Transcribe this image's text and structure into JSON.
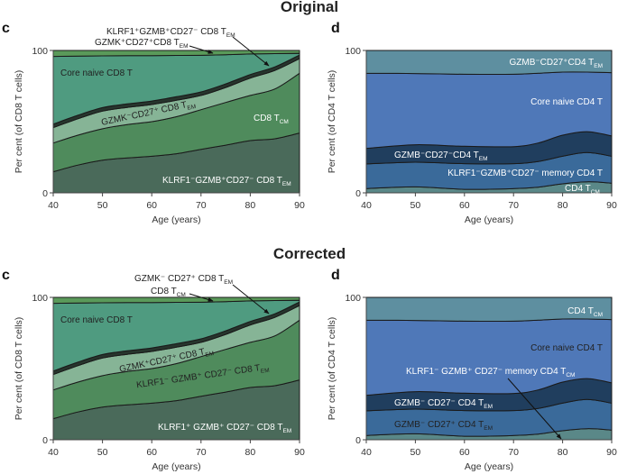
{
  "sections": [
    {
      "title": "Original"
    },
    {
      "title": "Corrected"
    }
  ],
  "chart_data": [
    {
      "panel": "c",
      "section": "Original",
      "type": "area",
      "stacked": true,
      "xlabel": "Age (years)",
      "ylabel": "Per cent (of CD8 T cells)",
      "xlim": [
        40,
        90
      ],
      "ylim": [
        0,
        100
      ],
      "xticks": [
        40,
        50,
        60,
        70,
        80,
        90
      ],
      "yticks": [
        0,
        100
      ],
      "x": [
        40,
        45,
        50,
        55,
        60,
        65,
        70,
        75,
        80,
        85,
        90
      ],
      "series": [
        {
          "name": "KLRF1⁻GZMB⁺CD27⁻ CD8 T",
          "sub": "EM",
          "color": "#4a6a5a",
          "label_color": "#ffffff",
          "values": [
            14.8,
            19.5,
            23,
            24.5,
            25.7,
            27.5,
            30.6,
            33.5,
            36.7,
            38,
            42
          ]
        },
        {
          "name": "CD8 T",
          "sub": "CM",
          "color": "#4f8b5c",
          "label_color": "#ffffff",
          "values": [
            20.2,
            21,
            22,
            23.5,
            24.3,
            26,
            27.8,
            30,
            31.7,
            35,
            42
          ]
        },
        {
          "name": "GZMK⁻CD27⁺ CD8 T",
          "sub": "EM",
          "color": "#86b496",
          "label_color": "#222222",
          "values": [
            10.8,
            11.5,
            12.4,
            12,
            12,
            11.5,
            10,
            10.5,
            12.2,
            13,
            10.3
          ]
        },
        {
          "name": "KLRF1⁺GZMB⁺CD27⁻ CD8 T",
          "sub": "EM",
          "color": "#27352d",
          "label_color": "#222222",
          "values": [
            2.5,
            2.5,
            2.5,
            2.5,
            2.5,
            2.5,
            2.5,
            2.5,
            2.5,
            2.5,
            2.5
          ]
        },
        {
          "name": "Core naive CD8 T",
          "sub": "",
          "color": "#4f9b80",
          "label_color": "#222222",
          "values": [
            47.5,
            41.5,
            36.3,
            33.8,
            31.9,
            29,
            25.7,
            20.5,
            14.4,
            9.3,
            1.2
          ]
        },
        {
          "name": "GZMK⁺CD27⁺CD8 T",
          "sub": "EM",
          "color": "#5a9a5a",
          "label_color": "#222222",
          "values": [
            4.2,
            4,
            3.8,
            3.7,
            3.6,
            3.5,
            3.4,
            3,
            2.5,
            2.2,
            2
          ]
        }
      ]
    },
    {
      "panel": "d",
      "section": "Original",
      "type": "area",
      "stacked": true,
      "xlabel": "Age (years)",
      "ylabel": "Per cent (of CD4 T cells)",
      "xlim": [
        40,
        90
      ],
      "ylim": [
        0,
        100
      ],
      "xticks": [
        40,
        50,
        60,
        70,
        80,
        90
      ],
      "yticks": [
        0,
        100
      ],
      "x": [
        40,
        50,
        60,
        70,
        75,
        80,
        85,
        90
      ],
      "series": [
        {
          "name": "CD4 T",
          "sub": "CM",
          "color": "#5a8888",
          "label_color": "#ffffff",
          "values": [
            3,
            4.2,
            2.5,
            3,
            4,
            6.3,
            7.8,
            6.8
          ]
        },
        {
          "name": "KLRF1⁻GZMB⁺CD27⁻ memory CD4 T",
          "sub": "",
          "color": "#3a6a9a",
          "label_color": "#ffffff",
          "values": [
            17.3,
            17.3,
            18,
            17.5,
            18,
            19.4,
            20.5,
            18.9
          ]
        },
        {
          "name": "GZMB⁻CD27⁻CD4 T",
          "sub": "EM",
          "color": "#203e5e",
          "label_color": "#ffffff",
          "values": [
            10.9,
            12.3,
            12.2,
            12,
            13,
            14.8,
            14.7,
            14.3
          ]
        },
        {
          "name": "Core naive CD4 T",
          "sub": "",
          "color": "#4f78b8",
          "label_color": "#ffffff",
          "values": [
            52.8,
            50,
            50.6,
            50.8,
            49,
            44.3,
            41.8,
            44.4
          ]
        },
        {
          "name": "GZMB⁻CD27⁺CD4 T",
          "sub": "EM",
          "color": "#5e8fa0",
          "label_color": "#ffffff",
          "values": [
            16,
            16.2,
            16.7,
            16.7,
            16,
            15.2,
            15.2,
            15.6
          ]
        }
      ]
    },
    {
      "panel": "c",
      "section": "Corrected",
      "type": "area",
      "stacked": true,
      "xlabel": "Age (years)",
      "ylabel": "Per cent (of CD8 T cells)",
      "xlim": [
        40,
        90
      ],
      "ylim": [
        0,
        100
      ],
      "xticks": [
        40,
        50,
        60,
        70,
        80,
        90
      ],
      "yticks": [
        0,
        100
      ],
      "x": [
        40,
        45,
        50,
        55,
        60,
        65,
        70,
        75,
        80,
        85,
        90
      ],
      "series": [
        {
          "name": "KLRF1⁺ GZMB⁺ CD27⁻ CD8 T",
          "sub": "EM",
          "color": "#4a6a5a",
          "label_color": "#ffffff",
          "values": [
            14.8,
            19.5,
            23,
            24.5,
            25.7,
            27.5,
            30.6,
            33.5,
            36.7,
            38,
            42
          ]
        },
        {
          "name": "KLRF1⁻ GZMB⁺ CD27⁻ CD8 T",
          "sub": "EM",
          "color": "#4f8b5c",
          "label_color": "#222222",
          "values": [
            20.2,
            21,
            22,
            23.5,
            24.3,
            26,
            27.8,
            30,
            31.7,
            35,
            42
          ]
        },
        {
          "name": "GZMK⁺CD27⁺ CD8 T",
          "sub": "EM",
          "color": "#86b496",
          "label_color": "#222222",
          "values": [
            10.8,
            11.5,
            12.4,
            12,
            12,
            11.5,
            10,
            10.5,
            12.2,
            13,
            10.3
          ]
        },
        {
          "name": "GZMK⁻ CD27⁺ CD8 T",
          "sub": "EM",
          "color": "#27352d",
          "label_color": "#222222",
          "values": [
            2.5,
            2.5,
            2.5,
            2.5,
            2.5,
            2.5,
            2.5,
            2.5,
            2.5,
            2.5,
            2.5
          ]
        },
        {
          "name": "Core naive CD8 T",
          "sub": "",
          "color": "#4f9b80",
          "label_color": "#222222",
          "values": [
            47.5,
            41.5,
            36.3,
            33.8,
            31.9,
            29,
            25.7,
            20.5,
            14.4,
            9.3,
            1.2
          ]
        },
        {
          "name": "CD8 T",
          "sub": "CM",
          "color": "#5a9a5a",
          "label_color": "#222222",
          "values": [
            4.2,
            4,
            3.8,
            3.7,
            3.6,
            3.5,
            3.4,
            3,
            2.5,
            2.2,
            2
          ]
        }
      ]
    },
    {
      "panel": "d",
      "section": "Corrected",
      "type": "area",
      "stacked": true,
      "xlabel": "Age (years)",
      "ylabel": "Per cent (of CD4 T cells)",
      "xlim": [
        40,
        90
      ],
      "ylim": [
        0,
        100
      ],
      "xticks": [
        40,
        50,
        60,
        70,
        80,
        90
      ],
      "yticks": [
        0,
        100
      ],
      "x": [
        40,
        50,
        60,
        70,
        75,
        80,
        85,
        90
      ],
      "series": [
        {
          "name": "KLRF1⁻ GZMB⁺ CD27⁻ memory CD4 T",
          "sub": "CM",
          "color": "#5a8888",
          "label_color": "#ffffff",
          "values": [
            3,
            4.2,
            2.5,
            3,
            4,
            6.3,
            7.8,
            6.8
          ]
        },
        {
          "name": "GZMB⁻ CD27⁺ CD4 T",
          "sub": "EM",
          "color": "#3a6a9a",
          "label_color": "#222222",
          "values": [
            17.3,
            17.3,
            18,
            17.5,
            18,
            19.4,
            20.5,
            18.9
          ]
        },
        {
          "name": "GZMB⁻ CD27⁻ CD4 T",
          "sub": "EM",
          "color": "#203e5e",
          "label_color": "#ffffff",
          "values": [
            10.9,
            12.3,
            12.2,
            12,
            13,
            14.8,
            14.7,
            14.3
          ]
        },
        {
          "name": "Core naive CD4 T",
          "sub": "",
          "color": "#4f78b8",
          "label_color": "#222222",
          "values": [
            52.8,
            50,
            50.6,
            50.8,
            49,
            44.3,
            41.8,
            44.4
          ]
        },
        {
          "name": "CD4 T",
          "sub": "CM",
          "color": "#5e8fa0",
          "label_color": "#ffffff",
          "values": [
            16,
            16.2,
            16.7,
            16.7,
            16,
            15.2,
            15.2,
            15.6
          ]
        }
      ]
    }
  ]
}
